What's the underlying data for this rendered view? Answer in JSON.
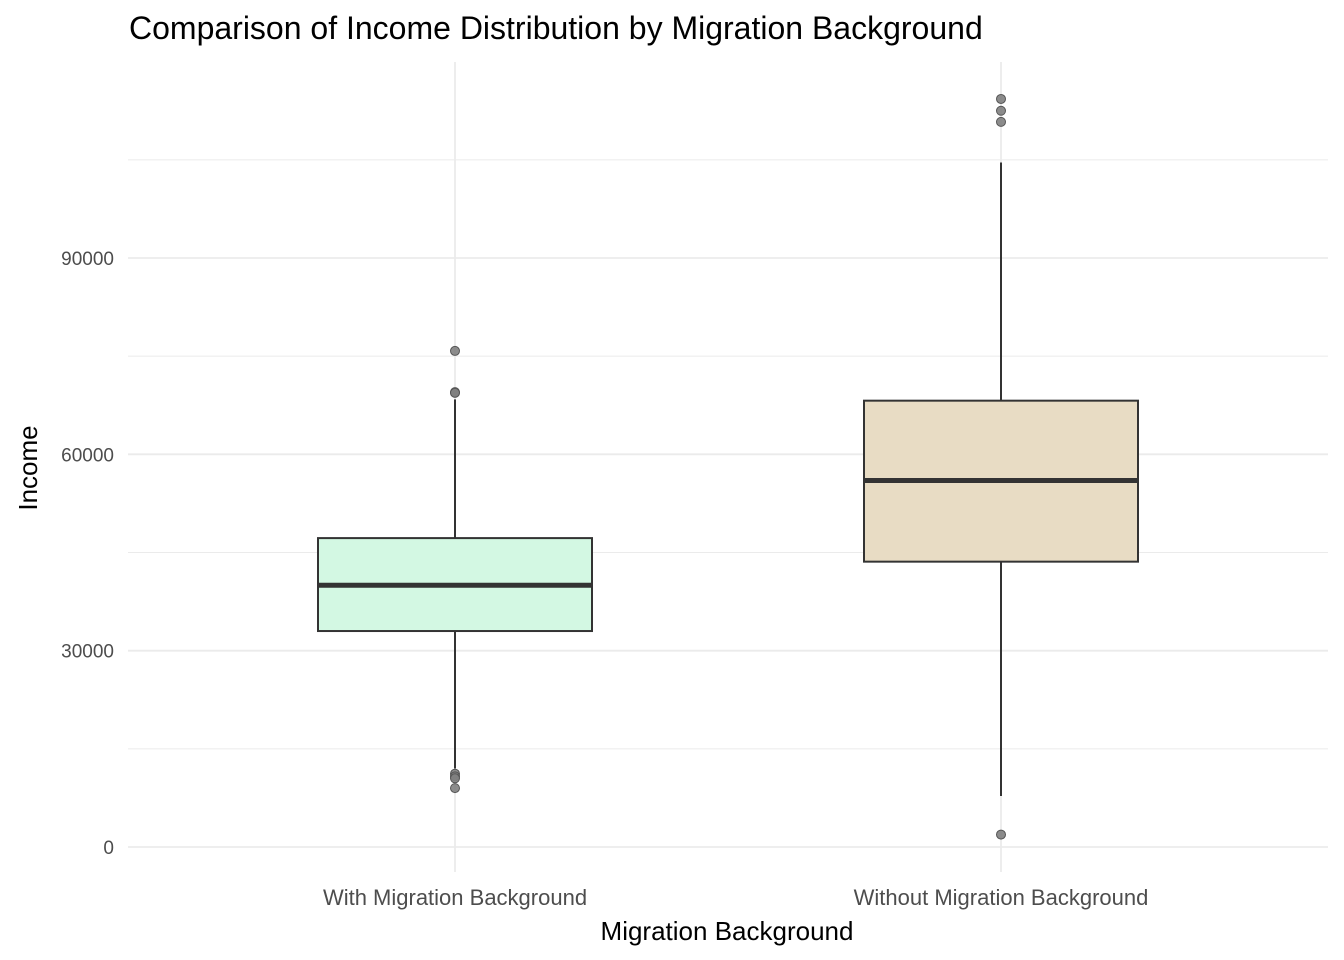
{
  "chart_data": {
    "type": "boxplot",
    "title": "Comparison of Income Distribution by Migration Background",
    "xlabel": "Migration Background",
    "ylabel": "Income",
    "ylim": [
      -4000,
      120000
    ],
    "yticks": [
      0,
      30000,
      60000,
      90000
    ],
    "ytick_labels": [
      "0",
      "30000",
      "60000",
      "90000"
    ],
    "grid": true,
    "categories": [
      "With Migration Background",
      "Without Migration Background"
    ],
    "boxes": [
      {
        "category": "With Migration Background",
        "fill": "#d3f8e3",
        "whisker_low": 12000,
        "q1": 33000,
        "median": 40000,
        "q3": 47200,
        "whisker_high": 68400,
        "outliers": [
          75800,
          69500,
          69400,
          11200,
          10800,
          10500,
          9000
        ]
      },
      {
        "category": "Without Migration Background",
        "fill": "#e8dcc4",
        "whisker_low": 7800,
        "q1": 43600,
        "median": 56000,
        "q3": 68200,
        "whisker_high": 104600,
        "outliers": [
          114300,
          112500,
          110800,
          1900
        ]
      }
    ]
  }
}
